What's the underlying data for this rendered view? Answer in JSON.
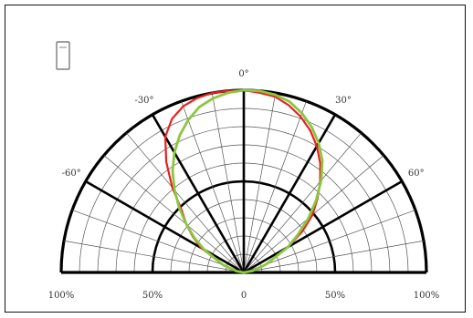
{
  "chart_data": {
    "type": "polar",
    "title": "",
    "angle_labels": [
      {
        "angle": 0,
        "text": "0°"
      },
      {
        "angle": -30,
        "text": "-30°"
      },
      {
        "angle": 30,
        "text": "30°"
      },
      {
        "angle": -60,
        "text": "-60°"
      },
      {
        "angle": 60,
        "text": "60°"
      }
    ],
    "radial_labels": [
      "100%",
      "50%",
      "0",
      "50%",
      "100%"
    ],
    "angular_range": [
      -90,
      90
    ],
    "radial_range": [
      0,
      100
    ],
    "grid": true,
    "series": [
      {
        "color": "#e8201c",
        "points": [
          [
            -90,
            0
          ],
          [
            -80,
            4
          ],
          [
            -70,
            12
          ],
          [
            -60,
            27
          ],
          [
            -55,
            34
          ],
          [
            -50,
            41
          ],
          [
            -45,
            48
          ],
          [
            -40,
            61
          ],
          [
            -35,
            74
          ],
          [
            -30,
            86
          ],
          [
            -25,
            93
          ],
          [
            -20,
            97
          ],
          [
            -15,
            99
          ],
          [
            -10,
            100
          ],
          [
            -5,
            100
          ],
          [
            0,
            100
          ],
          [
            5,
            99
          ],
          [
            10,
            98
          ],
          [
            15,
            95
          ],
          [
            20,
            91
          ],
          [
            25,
            86
          ],
          [
            30,
            80
          ],
          [
            35,
            73
          ],
          [
            40,
            65
          ],
          [
            45,
            57
          ],
          [
            50,
            49
          ],
          [
            55,
            39
          ],
          [
            60,
            28
          ],
          [
            70,
            13
          ],
          [
            80,
            5
          ],
          [
            90,
            0
          ]
        ]
      },
      {
        "color": "#8cc63f",
        "points": [
          [
            -90,
            0
          ],
          [
            -80,
            4
          ],
          [
            -70,
            12
          ],
          [
            -60,
            25
          ],
          [
            -55,
            33
          ],
          [
            -50,
            41
          ],
          [
            -45,
            50
          ],
          [
            -40,
            59
          ],
          [
            -35,
            68
          ],
          [
            -30,
            76
          ],
          [
            -25,
            83
          ],
          [
            -20,
            89
          ],
          [
            -15,
            94
          ],
          [
            -10,
            97
          ],
          [
            -5,
            99
          ],
          [
            0,
            100
          ],
          [
            5,
            100
          ],
          [
            10,
            99
          ],
          [
            15,
            97
          ],
          [
            20,
            93
          ],
          [
            25,
            88
          ],
          [
            30,
            82
          ],
          [
            35,
            75
          ],
          [
            40,
            66
          ],
          [
            45,
            56
          ],
          [
            50,
            46
          ],
          [
            55,
            36
          ],
          [
            60,
            28
          ],
          [
            70,
            13
          ],
          [
            80,
            5
          ],
          [
            90,
            0
          ]
        ]
      }
    ]
  }
}
